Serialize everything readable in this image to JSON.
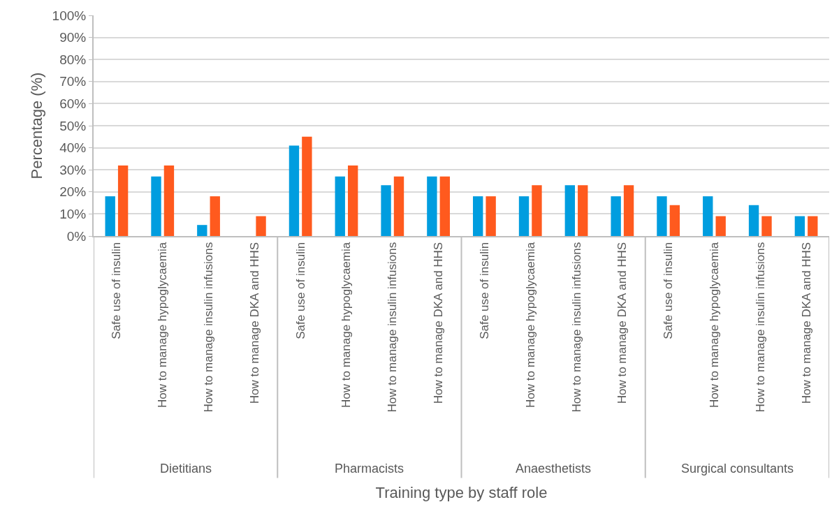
{
  "chart_data": {
    "type": "bar",
    "xlabel": "Training type by staff role",
    "ylabel": "Percentage (%)",
    "categories": [
      "Safe use of insulin",
      "How to manage hypoglycaemia",
      "How to manage insulin infusions",
      "How to manage DKA and HHS",
      "Safe use of insulin",
      "How to manage hypoglycaemia",
      "How to manage insulin infusions",
      "How to manage DKA and HHS",
      "Safe use of insulin",
      "How to manage hypoglycaemia",
      "How to manage insulin infusions",
      "How to manage DKA and HHS",
      "Safe use of insulin",
      "How to manage hypoglycaemia",
      "How to manage insulin infusions",
      "How to manage DKA and HHS"
    ],
    "series": [
      {
        "color": "#009ddf",
        "values": [
          18,
          27,
          5,
          0,
          41,
          27,
          23,
          27,
          18,
          18,
          23,
          18,
          18,
          18,
          14,
          9
        ]
      },
      {
        "color": "#ff5a1e",
        "values": [
          32,
          32,
          18,
          9,
          45,
          32,
          27,
          27,
          18,
          23,
          23,
          23,
          14,
          9,
          9,
          9
        ]
      }
    ],
    "annotations": [
      "Dietitians",
      "Pharmacists",
      "Anaesthetists",
      "Surgical consultants"
    ],
    "ylim": [
      0,
      100
    ],
    "yticks": [
      {
        "value": 0,
        "label": "0%"
      },
      {
        "value": 10,
        "label": "10%"
      },
      {
        "value": 20,
        "label": "20%"
      },
      {
        "value": 30,
        "label": "30%"
      },
      {
        "value": 40,
        "label": "40%"
      },
      {
        "value": 50,
        "label": "50%"
      },
      {
        "value": 60,
        "label": "60%"
      },
      {
        "value": 70,
        "label": "70%"
      },
      {
        "value": 80,
        "label": "80%"
      },
      {
        "value": 90,
        "label": "90%"
      },
      {
        "value": 100,
        "label": "100%"
      }
    ],
    "grid": "y"
  }
}
